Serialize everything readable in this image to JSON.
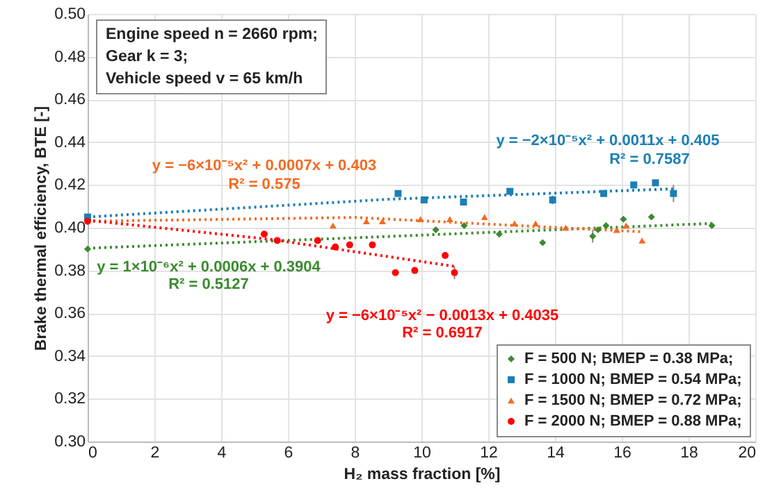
{
  "chart_data": {
    "type": "scatter",
    "xlabel": "H₂ mass fraction [%]",
    "ylabel": "Brake thermal efficiency, BTE [-]",
    "xlim": [
      0,
      20
    ],
    "xticks": [
      0,
      2,
      4,
      6,
      8,
      10,
      12,
      14,
      16,
      18,
      20
    ],
    "ylim": [
      0.3,
      0.5
    ],
    "yticks": [
      {
        "value": 0.3,
        "label": "0.30"
      },
      0.32,
      0.34,
      0.36,
      0.38,
      {
        "value": 0.4,
        "label": "0.40"
      },
      0.42,
      0.44,
      0.46,
      0.48,
      {
        "value": 0.5,
        "label": "0.50"
      }
    ],
    "grid": true,
    "legend": "bottom right",
    "series": [
      {
        "name": "F = 500 N; BMEP = 0.38 MPa;",
        "color": "#3a8a2e",
        "marker": "diamond",
        "x": [
          0,
          10.43,
          11.28,
          12.33,
          13.63,
          15.13,
          15.29,
          15.53,
          16.05,
          16.89,
          18.7
        ],
        "values": [
          0.39,
          0.399,
          0.401,
          0.397,
          0.393,
          0.396,
          0.399,
          0.401,
          0.404,
          0.405,
          0.401
        ],
        "errors": [
          null,
          null,
          null,
          null,
          null,
          0.003,
          null,
          null,
          null,
          null,
          null
        ]
      },
      {
        "name": "F = 1000 N; BMEP = 0.54 MPa;",
        "color": "#1b7fb5",
        "marker": "square",
        "x": [
          0,
          9.3,
          10.08,
          11.26,
          12.65,
          13.93,
          15.46,
          16.36,
          17.01,
          17.55
        ],
        "values": [
          0.405,
          0.416,
          0.413,
          0.412,
          0.417,
          0.413,
          0.416,
          0.42,
          0.421,
          0.416
        ],
        "errors": [
          null,
          null,
          null,
          null,
          null,
          0.002,
          null,
          null,
          null,
          0.004
        ]
      },
      {
        "name": "F = 1500 N; BMEP = 0.72 MPa;",
        "color": "#f26b21",
        "marker": "triangle",
        "x": [
          7.35,
          8.35,
          8.83,
          9.97,
          10.85,
          11.89,
          12.79,
          13.42,
          14.32,
          15.85,
          16.13,
          16.61
        ],
        "values": [
          0.401,
          0.403,
          0.403,
          0.404,
          0.404,
          0.405,
          0.402,
          0.402,
          0.4,
          0.399,
          0.401,
          0.394
        ]
      },
      {
        "name": "F = 2000 N; BMEP = 0.88 MPa;",
        "color": "#ff0000",
        "marker": "circle",
        "x": [
          0,
          5.29,
          5.68,
          6.89,
          7.42,
          7.85,
          8.53,
          9.22,
          9.8,
          10.71,
          10.99
        ],
        "values": [
          0.403,
          0.397,
          0.394,
          0.394,
          0.391,
          0.392,
          0.392,
          0.379,
          0.38,
          0.387,
          0.379
        ],
        "errors": [
          null,
          null,
          null,
          null,
          null,
          null,
          null,
          null,
          null,
          null,
          0.003
        ]
      },
      {
        "type": "line",
        "line_style": "dotted",
        "color": "#3a8a2e",
        "x": [
          0,
          9,
          18.7
        ],
        "values": [
          0.3904,
          0.3959,
          0.402
        ]
      },
      {
        "type": "line",
        "line_style": "dotted",
        "color": "#1b7fb5",
        "x": [
          0,
          9,
          17.6
        ],
        "values": [
          0.405,
          0.4133,
          0.4182
        ]
      },
      {
        "type": "line",
        "line_style": "dotted",
        "color": "#f26b21",
        "x": [
          0,
          8,
          16.6
        ],
        "values": [
          0.403,
          0.4048,
          0.3981
        ]
      },
      {
        "type": "line",
        "line_style": "dotted",
        "color": "#ff0000",
        "x": [
          0,
          5.5,
          11
        ],
        "values": [
          0.4035,
          0.3945,
          0.3819
        ]
      }
    ],
    "annotations": [
      "Engine speed n = 2660 rpm;",
      "Gear k = 3;",
      "Vehicle speed v = 65 km/h",
      "y = −6×10⁻⁵x² + 0.0007x + 0.403",
      "R² = 0.575",
      "y = −2×10⁻⁵x² + 0.0011x + 0.405",
      "R² = 0.7587",
      "y = 1×10⁻⁶x² + 0.0006x + 0.3904",
      "R² = 0.5127",
      "y = −6×10⁻⁵x² − 0.0013x + 0.4035",
      "R² = 0.6917"
    ]
  }
}
